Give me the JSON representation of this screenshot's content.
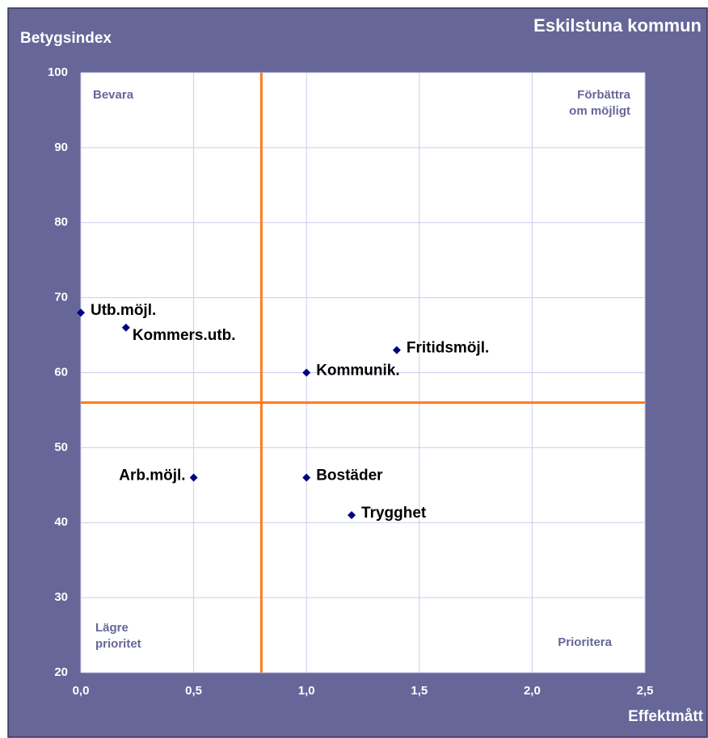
{
  "chart_data": {
    "type": "scatter",
    "title": "Eskilstuna kommun",
    "y_label": "Betygsindex",
    "x_label": "Effektmått",
    "labels": [
      "Utb.möjl.",
      "Kommers.utb.",
      "Fritidsmöjl.",
      "Kommunik.",
      "Arb.möjl.",
      "Bostäder",
      "Trygghet"
    ],
    "x": [
      0,
      0.2,
      1.4,
      1.0,
      0.5,
      1.0,
      1.2
    ],
    "values": [
      68,
      66,
      63,
      60,
      46,
      46,
      41
    ],
    "color": "#000080",
    "xlim": [
      0,
      2.5
    ],
    "ylim": [
      20,
      100
    ],
    "xticks": [
      {
        "value": 0,
        "label": "0,0"
      },
      {
        "value": 0.5,
        "label": "0,5"
      },
      {
        "value": 1.0,
        "label": "1,0"
      },
      {
        "value": 1.5,
        "label": "1,5"
      },
      {
        "value": 2.0,
        "label": "2,0"
      },
      {
        "value": 2.5,
        "label": "2,5"
      }
    ],
    "yticks": [
      20,
      30,
      40,
      50,
      60,
      70,
      80,
      90,
      100
    ],
    "grid": true,
    "reference_lines": {
      "x": 0.8,
      "y": 56,
      "color": "#ff7a1a"
    },
    "quadrant_labels": {
      "top_left": [
        "Bevara"
      ],
      "top_right": [
        "Förbättra",
        "om möjligt"
      ],
      "bottom_left": [
        "Lägre",
        "prioritet"
      ],
      "bottom_right": [
        "Prioritera"
      ]
    }
  }
}
